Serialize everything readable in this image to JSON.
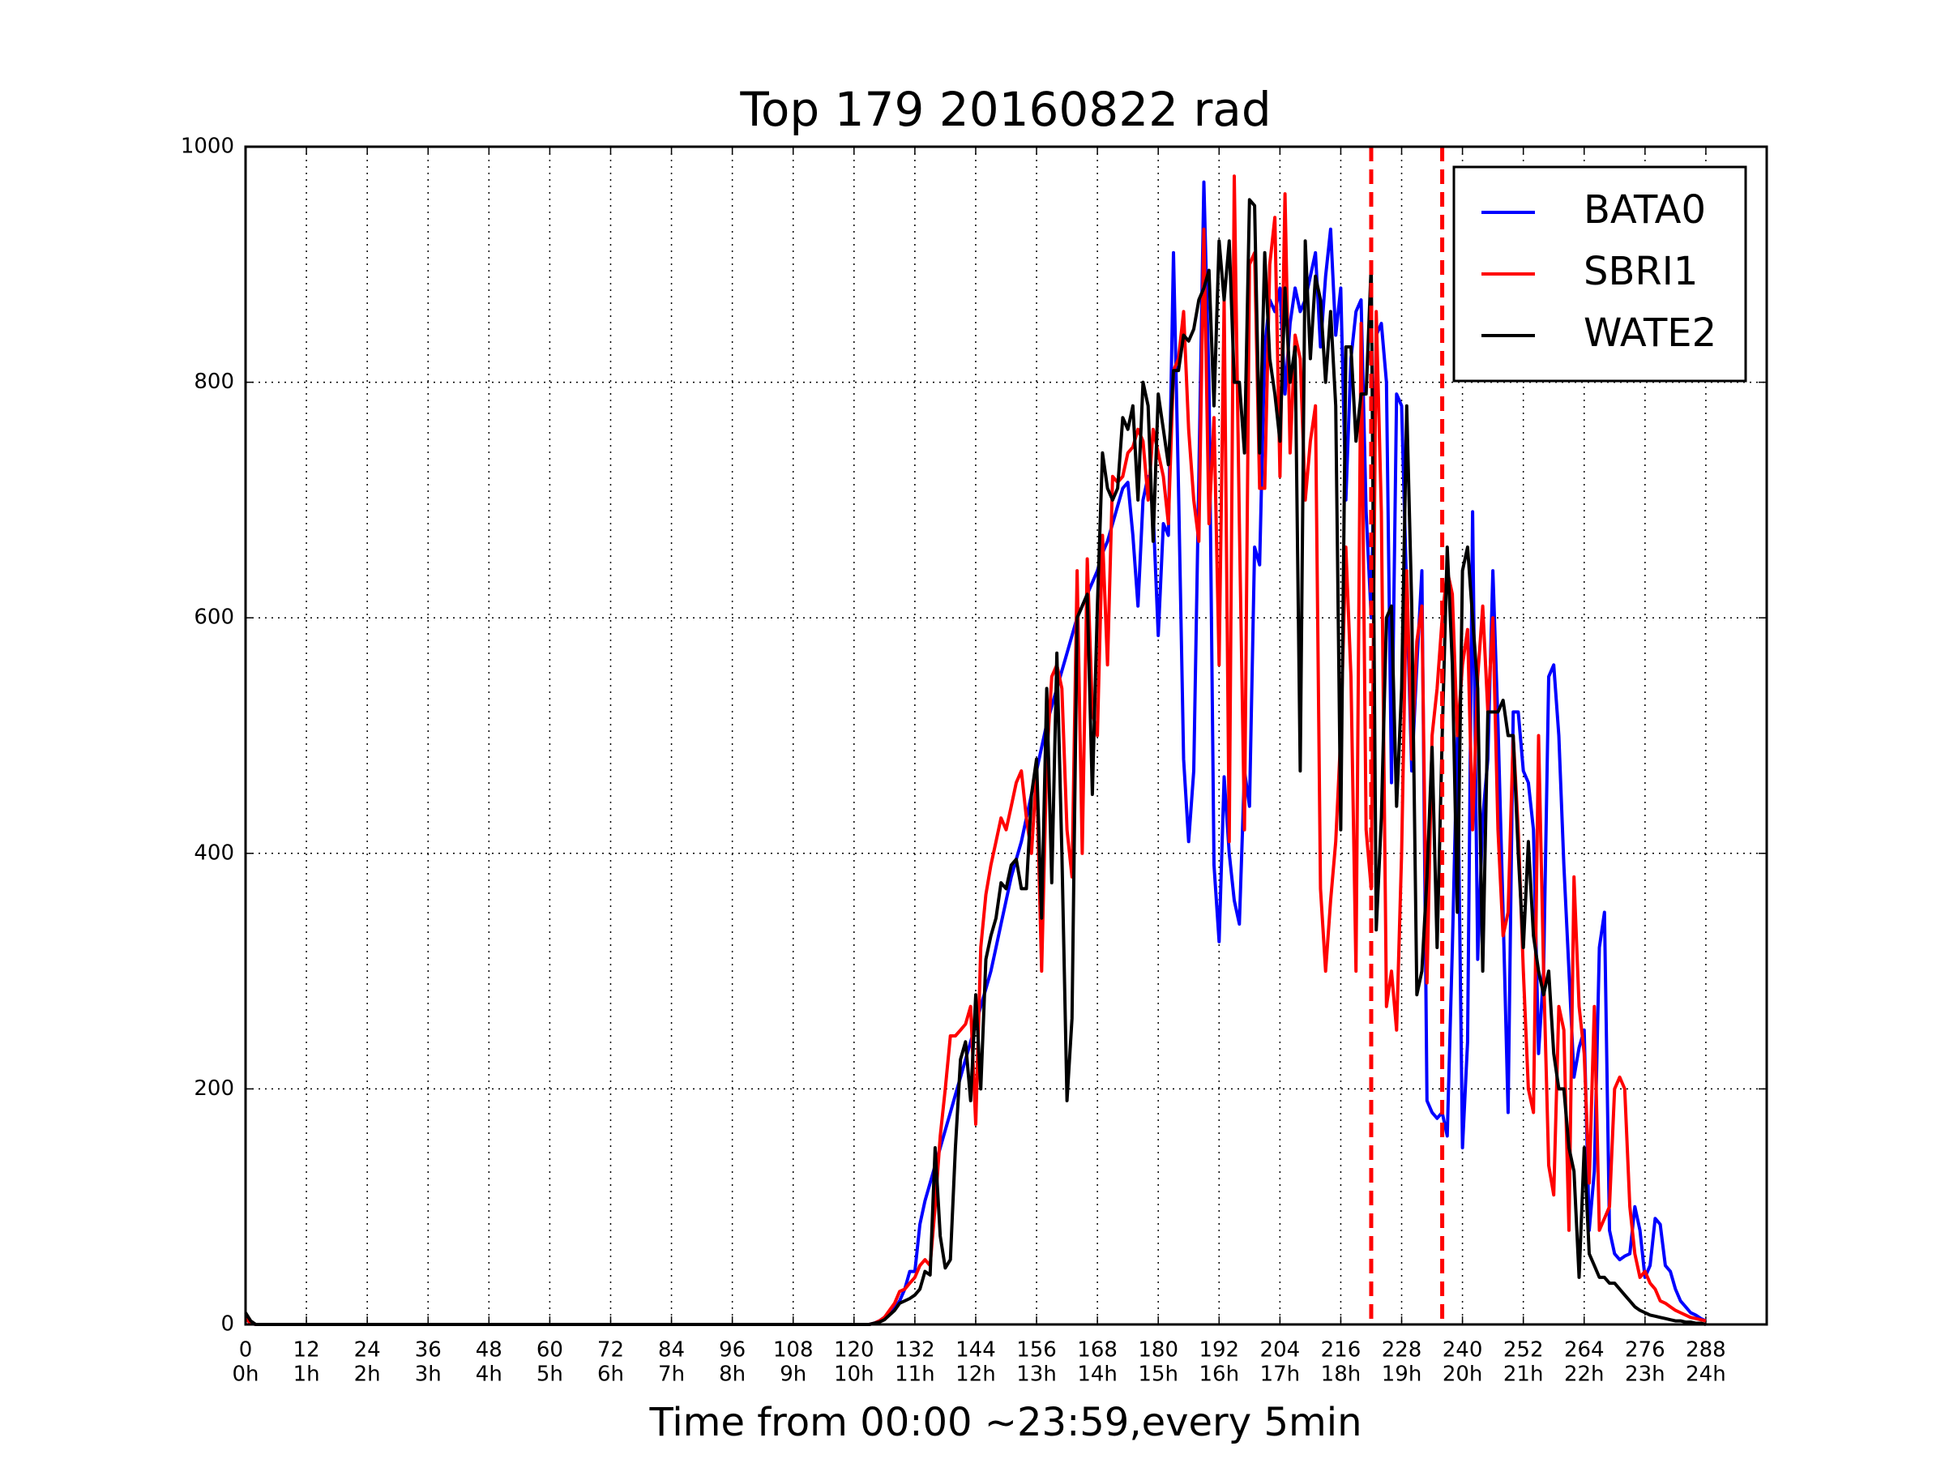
{
  "chart_data": {
    "type": "line",
    "title": "Top 179 20160822 rad",
    "x_label": "Time from 00:00 ~23:59,every 5min",
    "xlim": [
      0,
      300
    ],
    "ylim": [
      0,
      1000
    ],
    "xticks": [
      0,
      12,
      24,
      36,
      48,
      60,
      72,
      84,
      96,
      108,
      120,
      132,
      144,
      156,
      168,
      180,
      192,
      204,
      216,
      228,
      240,
      252,
      264,
      276,
      288
    ],
    "xtick_sublabels": [
      "0h",
      "1h",
      "2h",
      "3h",
      "4h",
      "5h",
      "6h",
      "7h",
      "8h",
      "9h",
      "10h",
      "11h",
      "12h",
      "13h",
      "14h",
      "15h",
      "16h",
      "17h",
      "18h",
      "19h",
      "20h",
      "21h",
      "22h",
      "23h",
      "24h"
    ],
    "yticks": [
      0,
      200,
      400,
      600,
      800,
      1000
    ],
    "grid": true,
    "legend": "upper right",
    "vlines": [
      222,
      236
    ],
    "vline_color": "#ff0000",
    "x": [
      0,
      1,
      2,
      3,
      4,
      5,
      6,
      7,
      8,
      9,
      10,
      11,
      12,
      13,
      14,
      15,
      16,
      17,
      18,
      19,
      20,
      21,
      22,
      23,
      24,
      25,
      26,
      27,
      28,
      29,
      30,
      31,
      32,
      33,
      34,
      35,
      36,
      37,
      38,
      39,
      40,
      41,
      42,
      43,
      44,
      45,
      46,
      47,
      48,
      49,
      50,
      51,
      52,
      53,
      54,
      55,
      56,
      57,
      58,
      59,
      60,
      61,
      62,
      63,
      64,
      65,
      66,
      67,
      68,
      69,
      70,
      71,
      72,
      73,
      74,
      75,
      76,
      77,
      78,
      79,
      80,
      81,
      82,
      83,
      84,
      85,
      86,
      87,
      88,
      89,
      90,
      91,
      92,
      93,
      94,
      95,
      96,
      97,
      98,
      99,
      100,
      101,
      102,
      103,
      104,
      105,
      106,
      107,
      108,
      109,
      110,
      111,
      112,
      113,
      114,
      115,
      116,
      117,
      118,
      119,
      120,
      121,
      122,
      123,
      124,
      125,
      126,
      127,
      128,
      129,
      130,
      131,
      132,
      133,
      134,
      135,
      136,
      137,
      138,
      139,
      140,
      141,
      142,
      143,
      144,
      145,
      146,
      147,
      148,
      149,
      150,
      151,
      152,
      153,
      154,
      155,
      156,
      157,
      158,
      159,
      160,
      161,
      162,
      163,
      164,
      165,
      166,
      167,
      168,
      169,
      170,
      171,
      172,
      173,
      174,
      175,
      176,
      177,
      178,
      179,
      180,
      181,
      182,
      183,
      184,
      185,
      186,
      187,
      188,
      189,
      190,
      191,
      192,
      193,
      194,
      195,
      196,
      197,
      198,
      199,
      200,
      201,
      202,
      203,
      204,
      205,
      206,
      207,
      208,
      209,
      210,
      211,
      212,
      213,
      214,
      215,
      216,
      217,
      218,
      219,
      220,
      221,
      222,
      223,
      224,
      225,
      226,
      227,
      228,
      229,
      230,
      231,
      232,
      233,
      234,
      235,
      236,
      237,
      238,
      239,
      240,
      241,
      242,
      243,
      244,
      245,
      246,
      247,
      248,
      249,
      250,
      251,
      252,
      253,
      254,
      255,
      256,
      257,
      258,
      259,
      260,
      261,
      262,
      263,
      264,
      265,
      266,
      267,
      268,
      269,
      270,
      271,
      272,
      273,
      274,
      275,
      276,
      277,
      278,
      279,
      280,
      281,
      282,
      283,
      284,
      285,
      286,
      287,
      288
    ],
    "series": [
      {
        "name": "BATA0",
        "color": "#0000ff",
        "values": [
          5,
          1,
          0,
          0,
          0,
          0,
          0,
          0,
          0,
          0,
          0,
          0,
          0,
          0,
          0,
          0,
          0,
          0,
          0,
          0,
          0,
          0,
          0,
          0,
          0,
          0,
          0,
          0,
          0,
          0,
          0,
          0,
          0,
          0,
          0,
          0,
          0,
          0,
          0,
          0,
          0,
          0,
          0,
          0,
          0,
          0,
          0,
          0,
          0,
          0,
          0,
          0,
          0,
          0,
          0,
          0,
          0,
          0,
          0,
          0,
          0,
          0,
          0,
          0,
          0,
          0,
          0,
          0,
          0,
          0,
          0,
          0,
          0,
          0,
          0,
          0,
          0,
          0,
          0,
          0,
          0,
          0,
          0,
          0,
          0,
          0,
          0,
          0,
          0,
          0,
          0,
          0,
          0,
          0,
          0,
          0,
          0,
          0,
          0,
          0,
          0,
          0,
          0,
          0,
          0,
          0,
          0,
          0,
          0,
          0,
          0,
          0,
          0,
          0,
          0,
          0,
          0,
          0,
          0,
          0,
          0,
          0,
          0,
          0,
          1,
          3,
          6,
          10,
          14,
          20,
          30,
          45,
          45,
          85,
          105,
          120,
          135,
          150,
          165,
          180,
          195,
          210,
          225,
          240,
          255,
          270,
          285,
          300,
          320,
          340,
          360,
          380,
          395,
          410,
          430,
          450,
          470,
          490,
          510,
          525,
          540,
          555,
          570,
          585,
          600,
          610,
          620,
          630,
          640,
          655,
          665,
          680,
          695,
          710,
          715,
          670,
          610,
          700,
          720,
          690,
          585,
          680,
          670,
          910,
          710,
          480,
          410,
          470,
          720,
          970,
          800,
          390,
          325,
          465,
          400,
          360,
          340,
          470,
          440,
          660,
          645,
          830,
          870,
          860,
          880,
          790,
          850,
          880,
          860,
          870,
          890,
          910,
          830,
          890,
          930,
          840,
          880,
          700,
          820,
          860,
          870,
          690,
          600,
          840,
          850,
          800,
          460,
          790,
          780,
          620,
          470,
          560,
          640,
          190,
          180,
          175,
          180,
          160,
          320,
          500,
          150,
          240,
          690,
          310,
          430,
          480,
          640,
          510,
          350,
          180,
          520,
          520,
          470,
          460,
          420,
          230,
          300,
          550,
          560,
          500,
          390,
          300,
          210,
          235,
          250,
          80,
          130,
          320,
          350,
          80,
          60,
          55,
          58,
          60,
          100,
          80,
          40,
          50,
          90,
          85,
          50,
          45,
          30,
          20,
          15,
          10,
          8,
          5,
          3
        ]
      },
      {
        "name": "SBRI1",
        "color": "#ff0000",
        "values": [
          5,
          1,
          0,
          0,
          0,
          0,
          0,
          0,
          0,
          0,
          0,
          0,
          0,
          0,
          0,
          0,
          0,
          0,
          0,
          0,
          0,
          0,
          0,
          0,
          0,
          0,
          0,
          0,
          0,
          0,
          0,
          0,
          0,
          0,
          0,
          0,
          0,
          0,
          0,
          0,
          0,
          0,
          0,
          0,
          0,
          0,
          0,
          0,
          0,
          0,
          0,
          0,
          0,
          0,
          0,
          0,
          0,
          0,
          0,
          0,
          0,
          0,
          0,
          0,
          0,
          0,
          0,
          0,
          0,
          0,
          0,
          0,
          0,
          0,
          0,
          0,
          0,
          0,
          0,
          0,
          0,
          0,
          0,
          0,
          0,
          0,
          0,
          0,
          0,
          0,
          0,
          0,
          0,
          0,
          0,
          0,
          0,
          0,
          0,
          0,
          0,
          0,
          0,
          0,
          0,
          0,
          0,
          0,
          0,
          0,
          0,
          0,
          0,
          0,
          0,
          0,
          0,
          0,
          0,
          0,
          0,
          0,
          0,
          0,
          1,
          3,
          6,
          12,
          18,
          28,
          30,
          35,
          40,
          50,
          55,
          50,
          100,
          160,
          200,
          245,
          245,
          250,
          255,
          270,
          170,
          320,
          365,
          390,
          410,
          430,
          420,
          440,
          460,
          470,
          430,
          400,
          470,
          300,
          480,
          550,
          560,
          540,
          420,
          380,
          640,
          400,
          650,
          520,
          500,
          670,
          560,
          720,
          715,
          720,
          740,
          745,
          760,
          750,
          700,
          760,
          740,
          720,
          680,
          810,
          820,
          860,
          760,
          700,
          665,
          930,
          680,
          770,
          560,
          870,
          410,
          975,
          680,
          420,
          900,
          910,
          710,
          710,
          900,
          940,
          720,
          960,
          740,
          840,
          820,
          700,
          750,
          780,
          370,
          300,
          360,
          410,
          500,
          660,
          550,
          300,
          850,
          420,
          370,
          860,
          690,
          270,
          300,
          250,
          400,
          640,
          480,
          580,
          610,
          290,
          500,
          540,
          600,
          640,
          620,
          500,
          560,
          590,
          420,
          550,
          610,
          520,
          600,
          420,
          330,
          350,
          500,
          420,
          300,
          200,
          180,
          500,
          300,
          135,
          110,
          270,
          250,
          80,
          380,
          270,
          230,
          120,
          270,
          80,
          90,
          100,
          200,
          210,
          200,
          100,
          60,
          40,
          45,
          35,
          30,
          20,
          18,
          15,
          12,
          10,
          8,
          6,
          5,
          4,
          3
        ]
      },
      {
        "name": "WATE2",
        "color": "#000000",
        "values": [
          10,
          3,
          0,
          0,
          0,
          0,
          0,
          0,
          0,
          0,
          0,
          0,
          0,
          0,
          0,
          0,
          0,
          0,
          0,
          0,
          0,
          0,
          0,
          0,
          0,
          0,
          0,
          0,
          0,
          0,
          0,
          0,
          0,
          0,
          0,
          0,
          0,
          0,
          0,
          0,
          0,
          0,
          0,
          0,
          0,
          0,
          0,
          0,
          0,
          0,
          0,
          0,
          0,
          0,
          0,
          0,
          0,
          0,
          0,
          0,
          0,
          0,
          0,
          0,
          0,
          0,
          0,
          0,
          0,
          0,
          0,
          0,
          0,
          0,
          0,
          0,
          0,
          0,
          0,
          0,
          0,
          0,
          0,
          0,
          0,
          0,
          0,
          0,
          0,
          0,
          0,
          0,
          0,
          0,
          0,
          0,
          0,
          0,
          0,
          0,
          0,
          0,
          0,
          0,
          0,
          0,
          0,
          0,
          0,
          0,
          0,
          0,
          0,
          0,
          0,
          0,
          0,
          0,
          0,
          0,
          0,
          0,
          0,
          0,
          1,
          2,
          4,
          8,
          12,
          18,
          20,
          22,
          25,
          30,
          45,
          42,
          150,
          75,
          48,
          55,
          150,
          225,
          240,
          190,
          280,
          200,
          310,
          330,
          345,
          375,
          370,
          390,
          395,
          370,
          370,
          450,
          480,
          345,
          540,
          375,
          570,
          400,
          190,
          260,
          600,
          610,
          620,
          450,
          610,
          740,
          710,
          700,
          710,
          770,
          760,
          780,
          700,
          800,
          780,
          665,
          790,
          760,
          730,
          810,
          810,
          840,
          835,
          845,
          870,
          880,
          895,
          780,
          920,
          870,
          920,
          800,
          800,
          740,
          955,
          950,
          740,
          910,
          820,
          790,
          750,
          880,
          800,
          830,
          470,
          920,
          820,
          890,
          870,
          800,
          860,
          780,
          420,
          830,
          830,
          750,
          790,
          790,
          900,
          335,
          430,
          600,
          610,
          440,
          540,
          780,
          610,
          280,
          300,
          380,
          490,
          320,
          500,
          660,
          560,
          350,
          640,
          660,
          600,
          540,
          300,
          520,
          520,
          520,
          530,
          500,
          500,
          400,
          320,
          410,
          330,
          300,
          280,
          300,
          230,
          200,
          200,
          150,
          130,
          40,
          150,
          60,
          50,
          40,
          40,
          35,
          35,
          30,
          25,
          20,
          15,
          12,
          10,
          8,
          7,
          6,
          5,
          4,
          3,
          3,
          2,
          2,
          1,
          1,
          0
        ]
      }
    ]
  }
}
